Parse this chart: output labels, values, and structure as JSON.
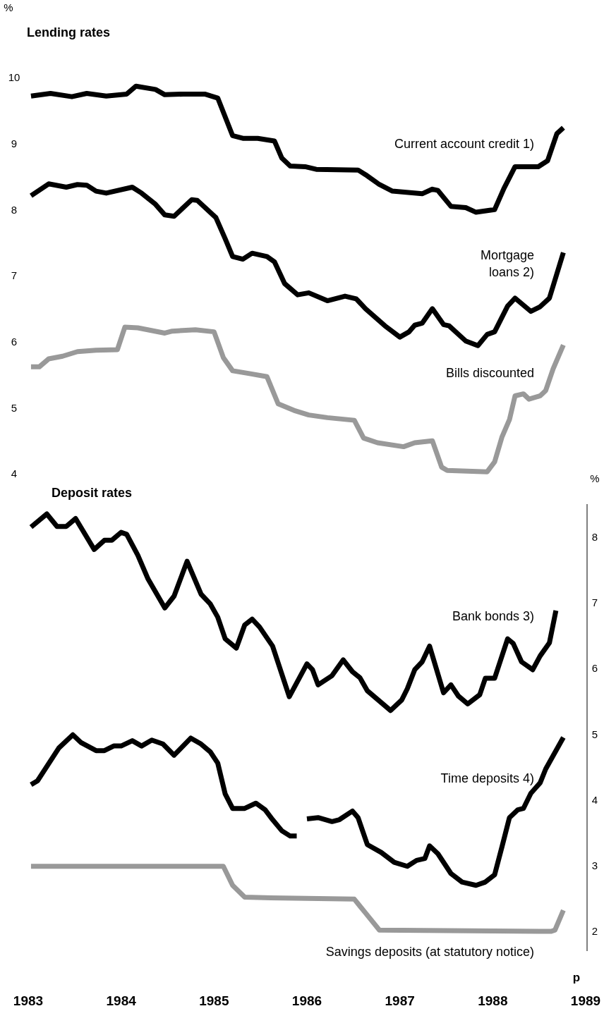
{
  "chart_data": [
    {
      "type": "line",
      "title": "Lending rates",
      "ylabel": "%",
      "xlim": [
        1983,
        1989
      ],
      "ylim": [
        4,
        10
      ],
      "yticks": [
        4,
        5,
        6,
        7,
        8,
        9,
        10
      ],
      "tick_labels": "y",
      "series": [
        {
          "name": "Current account credit 1)",
          "color": "#000000",
          "x": [
            1983.03,
            1983.24,
            1983.47,
            1983.63,
            1983.84,
            1984.06,
            1984.16,
            1984.37,
            1984.47,
            1984.67,
            1984.9,
            1985.04,
            1985.2,
            1985.31,
            1985.47,
            1985.65,
            1985.73,
            1985.82,
            1985.98,
            1986.1,
            1986.55,
            1986.63,
            1986.78,
            1986.92,
            1987.24,
            1987.35,
            1987.41,
            1987.55,
            1987.71,
            1987.82,
            1988.02,
            1988.12,
            1988.24,
            1988.49,
            1988.59,
            1988.69,
            1988.76
          ],
          "values": [
            9.72,
            9.76,
            9.71,
            9.76,
            9.72,
            9.75,
            9.87,
            9.82,
            9.74,
            9.75,
            9.75,
            9.69,
            9.12,
            9.08,
            9.08,
            9.04,
            8.78,
            8.66,
            8.65,
            8.61,
            8.6,
            8.53,
            8.38,
            8.28,
            8.24,
            8.31,
            8.29,
            8.05,
            8.03,
            7.96,
            8.0,
            8.32,
            8.65,
            8.65,
            8.74,
            9.15,
            9.24
          ]
        },
        {
          "name": "Mortgage loans 2)",
          "color": "#000000",
          "x": [
            1983.03,
            1983.22,
            1983.41,
            1983.53,
            1983.63,
            1983.73,
            1983.84,
            1984.12,
            1984.22,
            1984.37,
            1984.47,
            1984.57,
            1984.76,
            1984.82,
            1985.02,
            1985.12,
            1985.2,
            1985.31,
            1985.41,
            1985.57,
            1985.65,
            1985.76,
            1985.9,
            1986.02,
            1986.22,
            1986.41,
            1986.53,
            1986.63,
            1986.84,
            1987.0,
            1987.1,
            1987.16,
            1987.24,
            1987.35,
            1987.47,
            1987.53,
            1987.71,
            1987.84,
            1987.94,
            1988.02,
            1988.16,
            1988.24,
            1988.41,
            1988.51,
            1988.61,
            1988.76
          ],
          "values": [
            8.21,
            8.39,
            8.34,
            8.38,
            8.37,
            8.28,
            8.25,
            8.34,
            8.25,
            8.08,
            7.92,
            7.9,
            8.15,
            8.14,
            7.88,
            7.56,
            7.29,
            7.25,
            7.34,
            7.29,
            7.21,
            6.88,
            6.71,
            6.74,
            6.62,
            6.69,
            6.65,
            6.5,
            6.24,
            6.07,
            6.15,
            6.25,
            6.28,
            6.5,
            6.26,
            6.24,
            6.01,
            5.94,
            6.11,
            6.15,
            6.54,
            6.66,
            6.46,
            6.53,
            6.66,
            7.35
          ]
        },
        {
          "name": "Bills discounted",
          "color": "#999999",
          "x": [
            1983.03,
            1983.12,
            1983.22,
            1983.37,
            1983.53,
            1983.73,
            1983.96,
            1984.04,
            1984.18,
            1984.47,
            1984.55,
            1984.8,
            1985.0,
            1985.1,
            1985.2,
            1985.37,
            1985.57,
            1985.69,
            1985.86,
            1986.02,
            1986.22,
            1986.51,
            1986.61,
            1986.76,
            1987.04,
            1987.16,
            1987.35,
            1987.45,
            1987.51,
            1987.94,
            1988.02,
            1988.1,
            1988.18,
            1988.24,
            1988.33,
            1988.39,
            1988.51,
            1988.57,
            1988.65,
            1988.76
          ],
          "values": [
            5.62,
            5.62,
            5.74,
            5.78,
            5.85,
            5.87,
            5.88,
            6.22,
            6.21,
            6.13,
            6.16,
            6.18,
            6.15,
            5.76,
            5.56,
            5.52,
            5.47,
            5.06,
            4.96,
            4.89,
            4.85,
            4.81,
            4.54,
            4.47,
            4.41,
            4.47,
            4.5,
            4.1,
            4.05,
            4.03,
            4.18,
            4.56,
            4.82,
            5.18,
            5.21,
            5.13,
            5.18,
            5.26,
            5.59,
            5.95
          ]
        }
      ]
    },
    {
      "type": "line",
      "title": "Deposit rates",
      "y2label": "%",
      "annotations": [
        "p"
      ],
      "xlim": [
        1983,
        1989
      ],
      "xticks": [
        1983,
        1984,
        1985,
        1986,
        1987,
        1988,
        1989
      ],
      "y2lim": [
        1.7,
        8.5
      ],
      "y2ticks": [
        2,
        3,
        4,
        5,
        6,
        7,
        8
      ],
      "series": [
        {
          "name": "Bank bonds 3)",
          "color": "#000000",
          "axis": "y2",
          "x": [
            1983.03,
            1983.2,
            1983.31,
            1983.41,
            1983.51,
            1983.71,
            1983.82,
            1983.9,
            1984.0,
            1984.06,
            1984.18,
            1984.29,
            1984.47,
            1984.57,
            1984.71,
            1984.86,
            1984.96,
            1985.04,
            1985.12,
            1985.24,
            1985.33,
            1985.41,
            1985.49,
            1985.63,
            1985.81,
            1986.0,
            1986.06,
            1986.12,
            1986.27,
            1986.39,
            1986.49,
            1986.57,
            1986.65,
            1986.9,
            1987.02,
            1987.08,
            1987.16,
            1987.24,
            1987.32,
            1987.47,
            1987.55,
            1987.63,
            1987.73,
            1987.86,
            1987.92,
            1988.02,
            1988.16,
            1988.22,
            1988.31,
            1988.43,
            1988.51,
            1988.61,
            1988.68
          ],
          "values": [
            8.15,
            8.35,
            8.16,
            8.16,
            8.28,
            7.81,
            7.95,
            7.95,
            8.07,
            8.04,
            7.72,
            7.36,
            6.92,
            7.1,
            7.63,
            7.13,
            6.98,
            6.78,
            6.45,
            6.31,
            6.66,
            6.75,
            6.63,
            6.34,
            5.57,
            6.07,
            5.98,
            5.75,
            5.89,
            6.13,
            5.95,
            5.86,
            5.66,
            5.36,
            5.52,
            5.69,
            5.98,
            6.1,
            6.34,
            5.63,
            5.75,
            5.58,
            5.46,
            5.6,
            5.85,
            5.85,
            6.45,
            6.38,
            6.1,
            5.98,
            6.19,
            6.39,
            6.88
          ]
        },
        {
          "name": "Time deposits 4)",
          "color": "#000000",
          "axis": "y2",
          "x": [
            1983.03,
            1983.1,
            1983.33,
            1983.48,
            1983.57,
            1983.73,
            1983.82,
            1983.92,
            1984.0,
            1984.12,
            1984.22,
            1984.33,
            1984.45,
            1984.57,
            1984.75,
            1984.86,
            1984.96,
            1985.04,
            1985.12,
            1985.2,
            1985.33,
            1985.45,
            1985.55,
            1985.63,
            1985.73,
            1985.82,
            1985.89,
            1985.94,
            1986.0,
            1986.12,
            1986.27,
            1986.35,
            1986.49,
            1986.55,
            1986.65,
            1986.8,
            1986.94,
            1987.08,
            1987.18,
            1987.27,
            1987.32,
            1987.41,
            1987.55,
            1987.67,
            1987.82,
            1987.92,
            1988.02,
            1988.1,
            1988.18,
            1988.27,
            1988.33,
            1988.41,
            1988.51,
            1988.57,
            1988.76
          ],
          "values": [
            4.23,
            4.29,
            4.79,
            4.99,
            4.87,
            4.75,
            4.75,
            4.82,
            4.82,
            4.9,
            4.82,
            4.91,
            4.85,
            4.68,
            4.94,
            4.85,
            4.73,
            4.56,
            4.09,
            3.87,
            3.87,
            3.95,
            3.85,
            3.7,
            3.53,
            3.45,
            3.45,
            null,
            3.71,
            3.73,
            3.67,
            3.7,
            3.83,
            3.73,
            3.32,
            3.2,
            3.05,
            2.99,
            3.08,
            3.11,
            3.3,
            3.18,
            2.88,
            2.75,
            2.7,
            2.75,
            2.86,
            3.29,
            3.73,
            3.85,
            3.87,
            4.1,
            4.26,
            4.47,
            4.95
          ]
        },
        {
          "name": "Savings deposits (at statutory notice)",
          "color": "#999999",
          "axis": "y2",
          "x": [
            1983.03,
            1985.1,
            1985.2,
            1985.33,
            1985.61,
            1986.51,
            1986.63,
            1986.78,
            1988.63,
            1988.67,
            1988.76
          ],
          "values": [
            2.99,
            2.99,
            2.7,
            2.52,
            2.51,
            2.49,
            2.28,
            2.02,
            2.0,
            2.02,
            2.32
          ]
        }
      ]
    }
  ]
}
